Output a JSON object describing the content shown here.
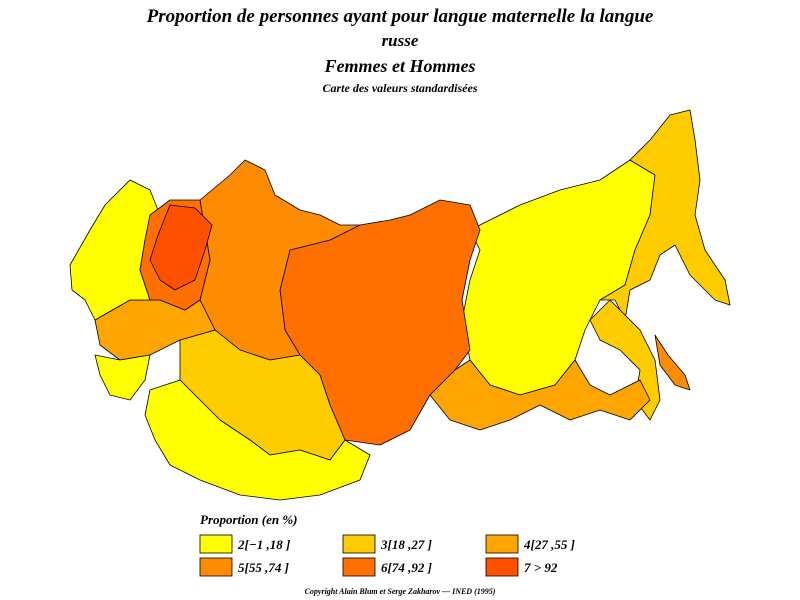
{
  "header": {
    "title_line1": "Proportion de personnes ayant pour langue maternelle la langue",
    "title_line2": "russe",
    "title_line3": "Femmes et Hommes",
    "subtitle": "Carte des valeurs standardisées"
  },
  "legend": {
    "title": "Proportion (en %)",
    "items": [
      {
        "label": "2[−1 ,18 ]",
        "color": "#ffff00"
      },
      {
        "label": "3[18 ,27 ]",
        "color": "#ffcc00"
      },
      {
        "label": "4[27 ,55 ]",
        "color": "#ffa500"
      },
      {
        "label": "5[55 ,74 ]",
        "color": "#ff8c00"
      },
      {
        "label": "6[74 ,92 ]",
        "color": "#ff7000"
      },
      {
        "label": "7 > 92",
        "color": "#ff5000"
      }
    ]
  },
  "footer": {
    "copyright": "Copyright Alain Blum et Serge Zakharov — INED (1995)"
  }
}
